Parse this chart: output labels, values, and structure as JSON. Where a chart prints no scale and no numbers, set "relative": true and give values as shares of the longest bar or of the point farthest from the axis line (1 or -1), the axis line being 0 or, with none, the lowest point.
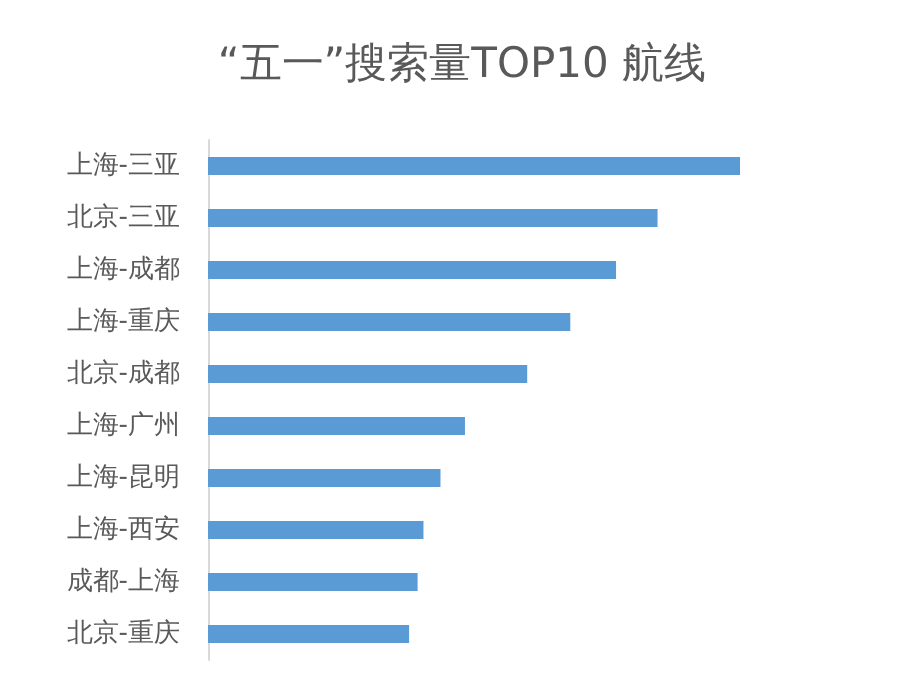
{
  "chart_data": {
    "type": "bar",
    "orientation": "horizontal",
    "relative": true,
    "title": "“五一”搜索量TOP10 航线",
    "categories": [
      "上海-三亚",
      "北京-三亚",
      "上海-成都",
      "上海-重庆",
      "北京-成都",
      "上海-广州",
      "上海-昆明",
      "上海-西安",
      "成都-上海",
      "北京-重庆"
    ],
    "values": [
      1,
      0.845,
      0.767,
      0.681,
      0.6,
      0.483,
      0.437,
      0.405,
      0.394,
      0.378
    ],
    "color": "#5b9bd5"
  }
}
